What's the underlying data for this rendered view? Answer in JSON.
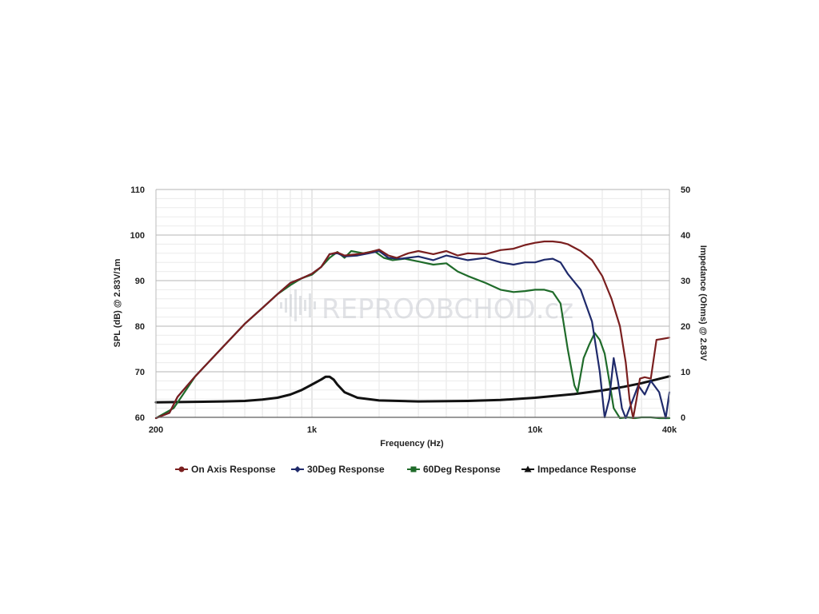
{
  "chart_data": {
    "type": "line",
    "title": "",
    "xlabel": "Frequency (Hz)",
    "ylabel": "SPL (dB) @ 2.83V/1m",
    "y2label": "Impedance (Ohms) @ 2.83V",
    "xscale": "log",
    "xlim": [
      200,
      40000
    ],
    "ylim": [
      60,
      110
    ],
    "y2lim": [
      0,
      50
    ],
    "xticks": [
      {
        "value": 200,
        "label": "200"
      },
      {
        "value": 1000,
        "label": "1k"
      },
      {
        "value": 10000,
        "label": "10k"
      },
      {
        "value": 40000,
        "label": "40k"
      }
    ],
    "yticks": [
      "60",
      "70",
      "80",
      "90",
      "100",
      "110"
    ],
    "y2ticks": [
      "0",
      "10",
      "20",
      "30",
      "40",
      "50"
    ],
    "grid": true,
    "legend_position": "bottom",
    "watermark": "REPROOBCHOD.cz",
    "series": [
      {
        "name": "On Axis Response",
        "color": "#7a1f1f",
        "marker": "circle",
        "axis": "left",
        "points": [
          [
            200,
            59.5
          ],
          [
            230,
            61
          ],
          [
            250,
            64.5
          ],
          [
            300,
            69
          ],
          [
            400,
            75.5
          ],
          [
            500,
            80.5
          ],
          [
            600,
            84
          ],
          [
            700,
            87
          ],
          [
            800,
            89.5
          ],
          [
            900,
            90.5
          ],
          [
            1000,
            91.5
          ],
          [
            1100,
            93
          ],
          [
            1200,
            95.8
          ],
          [
            1300,
            96.2
          ],
          [
            1400,
            95.5
          ],
          [
            1600,
            95.8
          ],
          [
            1800,
            96.2
          ],
          [
            2000,
            96.8
          ],
          [
            2200,
            95.5
          ],
          [
            2400,
            95
          ],
          [
            2700,
            96
          ],
          [
            3000,
            96.5
          ],
          [
            3500,
            95.8
          ],
          [
            4000,
            96.5
          ],
          [
            4500,
            95.5
          ],
          [
            5000,
            96
          ],
          [
            6000,
            95.8
          ],
          [
            7000,
            96.7
          ],
          [
            8000,
            97
          ],
          [
            9000,
            97.8
          ],
          [
            10000,
            98.3
          ],
          [
            11000,
            98.6
          ],
          [
            12000,
            98.6
          ],
          [
            13000,
            98.4
          ],
          [
            14000,
            98
          ],
          [
            16000,
            96.5
          ],
          [
            18000,
            94.5
          ],
          [
            20000,
            91
          ],
          [
            22000,
            86
          ],
          [
            24000,
            80
          ],
          [
            25500,
            72
          ],
          [
            26500,
            64
          ],
          [
            27500,
            58
          ],
          [
            28500,
            64
          ],
          [
            29500,
            68.5
          ],
          [
            31000,
            68.8
          ],
          [
            33000,
            68.5
          ],
          [
            35000,
            77
          ],
          [
            37000,
            77.2
          ],
          [
            40000,
            77.5
          ]
        ]
      },
      {
        "name": "30Deg Response",
        "color": "#1f2a6b",
        "marker": "diamond",
        "axis": "left",
        "points": [
          [
            200,
            59.5
          ],
          [
            230,
            61
          ],
          [
            250,
            64.5
          ],
          [
            300,
            69
          ],
          [
            400,
            75.5
          ],
          [
            500,
            80.5
          ],
          [
            600,
            84
          ],
          [
            700,
            87
          ],
          [
            800,
            89.5
          ],
          [
            900,
            90.5
          ],
          [
            1000,
            91.5
          ],
          [
            1100,
            93
          ],
          [
            1200,
            95.8
          ],
          [
            1300,
            96
          ],
          [
            1400,
            95.3
          ],
          [
            1600,
            95.5
          ],
          [
            1800,
            96
          ],
          [
            2000,
            96.5
          ],
          [
            2200,
            95
          ],
          [
            2500,
            94.8
          ],
          [
            3000,
            95.3
          ],
          [
            3500,
            94.5
          ],
          [
            4000,
            95.5
          ],
          [
            5000,
            94.5
          ],
          [
            6000,
            95
          ],
          [
            7000,
            94
          ],
          [
            8000,
            93.5
          ],
          [
            9000,
            94
          ],
          [
            10000,
            94
          ],
          [
            11000,
            94.6
          ],
          [
            12000,
            94.8
          ],
          [
            13000,
            94
          ],
          [
            14000,
            91.5
          ],
          [
            16000,
            88
          ],
          [
            18000,
            81
          ],
          [
            19500,
            70
          ],
          [
            20500,
            60
          ],
          [
            21500,
            64
          ],
          [
            22500,
            73
          ],
          [
            23500,
            68
          ],
          [
            24500,
            62
          ],
          [
            25500,
            58
          ],
          [
            27000,
            63
          ],
          [
            29000,
            67
          ],
          [
            31000,
            65
          ],
          [
            33000,
            68
          ],
          [
            36000,
            65.5
          ],
          [
            38500,
            59
          ],
          [
            40000,
            65.5
          ]
        ]
      },
      {
        "name": "60Deg Response",
        "color": "#1f6b2a",
        "marker": "square",
        "axis": "left",
        "points": [
          [
            200,
            59.5
          ],
          [
            240,
            62
          ],
          [
            260,
            64.5
          ],
          [
            300,
            69
          ],
          [
            400,
            75.5
          ],
          [
            500,
            80.5
          ],
          [
            600,
            84
          ],
          [
            700,
            87
          ],
          [
            800,
            89
          ],
          [
            900,
            90.5
          ],
          [
            1000,
            91.3
          ],
          [
            1100,
            93
          ],
          [
            1200,
            95
          ],
          [
            1300,
            96.3
          ],
          [
            1400,
            95
          ],
          [
            1500,
            96.5
          ],
          [
            1700,
            96
          ],
          [
            1900,
            96.5
          ],
          [
            2100,
            95
          ],
          [
            2300,
            94.5
          ],
          [
            2600,
            94.8
          ],
          [
            3000,
            94.2
          ],
          [
            3500,
            93.5
          ],
          [
            4000,
            93.8
          ],
          [
            4500,
            92
          ],
          [
            5000,
            91
          ],
          [
            6000,
            89.5
          ],
          [
            7000,
            88
          ],
          [
            8000,
            87.5
          ],
          [
            9000,
            87.7
          ],
          [
            10000,
            88
          ],
          [
            11000,
            88
          ],
          [
            12000,
            87.5
          ],
          [
            13000,
            85
          ],
          [
            14000,
            75
          ],
          [
            15000,
            67
          ],
          [
            15500,
            65.5
          ],
          [
            16500,
            73
          ],
          [
            17500,
            76
          ],
          [
            18500,
            78.5
          ],
          [
            19500,
            77
          ],
          [
            20500,
            74
          ],
          [
            21500,
            68
          ],
          [
            22500,
            62
          ],
          [
            24000,
            58
          ],
          [
            26000,
            60
          ],
          [
            28000,
            59
          ],
          [
            30000,
            60
          ],
          [
            33000,
            60
          ],
          [
            36000,
            59.5
          ],
          [
            40000,
            59.5
          ]
        ]
      },
      {
        "name": "Impedance Response",
        "color": "#111111",
        "marker": "triangle",
        "axis": "right",
        "points": [
          [
            200,
            3.3
          ],
          [
            300,
            3.4
          ],
          [
            400,
            3.5
          ],
          [
            500,
            3.6
          ],
          [
            600,
            3.9
          ],
          [
            700,
            4.3
          ],
          [
            800,
            5
          ],
          [
            900,
            6
          ],
          [
            1000,
            7.2
          ],
          [
            1100,
            8.3
          ],
          [
            1150,
            8.9
          ],
          [
            1200,
            8.9
          ],
          [
            1250,
            8.3
          ],
          [
            1300,
            7.2
          ],
          [
            1400,
            5.5
          ],
          [
            1600,
            4.3
          ],
          [
            2000,
            3.7
          ],
          [
            3000,
            3.5
          ],
          [
            5000,
            3.6
          ],
          [
            7000,
            3.8
          ],
          [
            10000,
            4.3
          ],
          [
            15000,
            5.1
          ],
          [
            20000,
            5.9
          ],
          [
            25000,
            6.7
          ],
          [
            30000,
            7.5
          ],
          [
            35000,
            8.3
          ],
          [
            40000,
            9
          ]
        ]
      }
    ]
  }
}
